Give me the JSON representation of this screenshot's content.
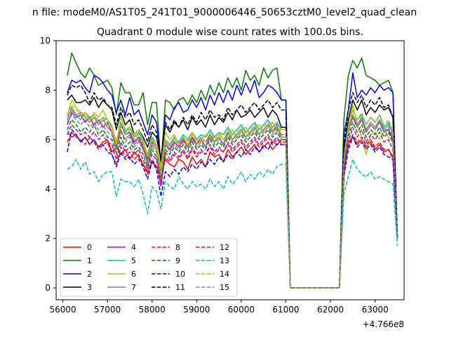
{
  "chart_data": {
    "type": "line",
    "suptitle": "n file: modeM0/AS1T05_241T01_9000006446_50653cztM0_level2_quad_clean",
    "title": "Quadrant 0 module wise count rates with 100.0s bins.",
    "xlabel": "",
    "ylabel": "",
    "x_offset_label": "+4.766e8",
    "xlim": [
      55850,
      63650
    ],
    "ylim": [
      -0.48,
      10.0
    ],
    "xticks": [
      56000,
      57000,
      58000,
      59000,
      60000,
      61000,
      62000,
      63000
    ],
    "xtick_labels": [
      "56000",
      "57000",
      "58000",
      "59000",
      "60000",
      "61000",
      "62000",
      "63000"
    ],
    "yticks": [
      0,
      2,
      4,
      6,
      8,
      10
    ],
    "ytick_labels": [
      "0",
      "2",
      "4",
      "6",
      "8",
      "10"
    ],
    "legend_position": "lower-left",
    "segments": {
      "seg1": {
        "x_start": 56100,
        "x_end": 60900,
        "step": 100
      },
      "drop_x": [
        61000,
        61100
      ],
      "zero_x": [
        61100,
        62200
      ],
      "rise_x": 62300,
      "seg2": {
        "x_start": 62400,
        "x_end": 63400,
        "step": 100
      },
      "end_x": 63500
    },
    "series": [
      {
        "name": "0",
        "color": "#ff0000",
        "dash": "solid",
        "seg1": [
          6.3,
          6.1,
          6.2,
          5.9,
          6.1,
          5.8,
          6.0,
          5.7,
          5.9,
          6.0,
          5.5,
          5.7,
          5.4,
          5.6,
          5.2,
          5.5,
          5.3,
          5.0,
          4.7,
          5.1,
          4.9,
          4.6,
          5.2,
          5.0,
          4.9,
          5.2,
          5.1,
          4.8,
          5.3,
          5.0,
          5.2,
          4.9,
          5.5,
          5.3,
          5.4,
          5.1,
          5.6,
          5.3,
          5.5,
          5.7,
          5.4,
          5.6,
          5.8,
          5.5,
          5.7,
          5.9,
          5.6,
          5.8,
          6.0
        ],
        "drop": [
          6.0,
          0.0
        ],
        "rise": 4.6,
        "seg2": [
          5.9,
          6.1,
          5.8,
          6.0,
          5.7,
          5.9,
          5.6,
          5.8,
          5.5,
          5.6,
          5.3
        ],
        "end": 2.1
      },
      {
        "name": "1",
        "color": "#008000",
        "dash": "solid",
        "seg1": [
          8.6,
          9.5,
          9.1,
          8.7,
          8.5,
          8.9,
          8.6,
          8.2,
          8.3,
          8.4,
          8.1,
          7.0,
          8.3,
          7.9,
          7.9,
          7.4,
          7.4,
          7.9,
          6.6,
          7.5,
          7.5,
          4.9,
          7.6,
          7.5,
          7.2,
          7.6,
          7.7,
          7.4,
          7.8,
          7.5,
          8.0,
          7.6,
          8.2,
          7.8,
          8.3,
          7.9,
          8.5,
          8.1,
          8.5,
          8.0,
          8.8,
          8.4,
          8.6,
          8.2,
          8.9,
          8.5,
          8.8,
          8.9,
          7.6
        ],
        "drop": [
          7.6,
          0.0
        ],
        "rise": 6.8,
        "seg2": [
          8.6,
          9.2,
          8.9,
          9.3,
          8.6,
          8.5,
          8.4,
          8.2,
          8.3,
          8.4,
          7.9
        ],
        "end": 2.0
      },
      {
        "name": "2",
        "color": "#0000ff",
        "dash": "solid",
        "seg1": [
          7.9,
          8.4,
          8.3,
          8.4,
          8.1,
          7.9,
          8.6,
          8.5,
          8.3,
          8.0,
          7.8,
          7.1,
          7.6,
          7.0,
          7.7,
          7.0,
          7.2,
          6.7,
          6.2,
          7.0,
          6.7,
          5.1,
          7.0,
          6.8,
          7.3,
          7.5,
          7.1,
          7.2,
          7.6,
          7.3,
          7.7,
          7.2,
          7.8,
          7.4,
          7.9,
          7.5,
          8.0,
          7.6,
          8.2,
          7.8,
          8.3,
          7.9,
          8.4,
          7.7,
          7.9,
          8.2,
          8.1,
          7.9,
          7.6
        ],
        "drop": [
          7.6,
          0.0
        ],
        "rise": 6.2,
        "seg2": [
          7.2,
          8.7,
          7.7,
          8.0,
          7.8,
          8.1,
          7.9,
          8.2,
          8.0,
          8.1,
          7.9
        ],
        "end": 2.0
      },
      {
        "name": "3",
        "color": "#000000",
        "dash": "solid",
        "seg1": [
          7.6,
          7.8,
          7.5,
          7.5,
          7.6,
          7.4,
          7.7,
          7.3,
          7.6,
          7.4,
          7.2,
          6.4,
          7.1,
          6.6,
          6.8,
          6.2,
          6.4,
          6.1,
          5.7,
          6.3,
          6.1,
          5.2,
          6.6,
          6.3,
          6.7,
          6.5,
          6.8,
          6.4,
          6.9,
          6.6,
          6.8,
          6.5,
          7.0,
          6.6,
          6.9,
          6.7,
          7.1,
          6.8,
          7.2,
          6.9,
          7.0,
          7.2,
          6.9,
          7.1,
          7.3,
          6.9,
          7.2,
          7.0,
          6.5
        ],
        "drop": [
          6.5,
          0.0
        ],
        "rise": 5.6,
        "seg2": [
          6.8,
          7.6,
          7.2,
          7.6,
          7.0,
          7.3,
          7.1,
          7.4,
          7.2,
          7.3,
          6.9
        ],
        "end": 2.0
      },
      {
        "name": "4",
        "color": "#bf00bf",
        "dash": "solid",
        "seg1": [
          6.6,
          7.1,
          6.9,
          7.0,
          6.7,
          6.9,
          6.6,
          6.8,
          6.5,
          6.7,
          6.3,
          5.7,
          6.6,
          6.2,
          6.3,
          5.9,
          6.1,
          5.7,
          5.2,
          5.9,
          5.7,
          4.5,
          5.8,
          5.6,
          5.9,
          5.7,
          6.0,
          5.7,
          6.1,
          5.8,
          6.0,
          5.7,
          6.2,
          5.9,
          6.1,
          5.8,
          6.3,
          6.0,
          6.2,
          6.4,
          6.1,
          6.3,
          6.5,
          6.2,
          6.4,
          6.6,
          6.3,
          6.6,
          6.2
        ],
        "drop": [
          6.2,
          0.0
        ],
        "rise": 5.0,
        "seg2": [
          6.4,
          6.9,
          6.5,
          6.8,
          6.3,
          6.6,
          6.4,
          6.7,
          6.3,
          6.4,
          6.0
        ],
        "end": 2.0
      },
      {
        "name": "5",
        "color": "#00bfbf",
        "dash": "solid",
        "seg1": [
          6.9,
          7.2,
          7.0,
          6.8,
          7.1,
          6.9,
          7.0,
          6.7,
          6.9,
          6.8,
          6.5,
          5.9,
          6.7,
          6.3,
          6.5,
          6.1,
          6.3,
          5.9,
          5.4,
          6.1,
          5.8,
          4.7,
          6.0,
          5.8,
          6.1,
          5.9,
          6.2,
          6.0,
          6.3,
          6.0,
          6.2,
          6.1,
          6.4,
          6.1,
          6.3,
          6.2,
          6.5,
          6.2,
          6.4,
          6.6,
          6.3,
          6.5,
          6.7,
          6.4,
          6.6,
          6.8,
          6.5,
          6.7,
          6.4
        ],
        "drop": [
          6.4,
          0.0
        ],
        "rise": 5.2,
        "seg2": [
          6.6,
          7.2,
          6.8,
          7.0,
          6.6,
          6.9,
          6.7,
          7.0,
          6.5,
          6.7,
          6.2
        ],
        "end": 2.0
      },
      {
        "name": "6",
        "color": "#bfbf00",
        "dash": "solid",
        "seg1": [
          7.0,
          7.6,
          7.3,
          7.1,
          7.0,
          6.8,
          7.1,
          6.9,
          7.2,
          6.8,
          6.6,
          5.8,
          6.9,
          6.4,
          6.5,
          6.2,
          6.4,
          6.0,
          5.3,
          6.0,
          5.8,
          4.9,
          6.3,
          6.0,
          6.2,
          5.8,
          6.1,
          5.9,
          6.3,
          5.9,
          6.0,
          6.2,
          6.1,
          5.9,
          6.3,
          6.0,
          6.2,
          6.4,
          6.1,
          6.3,
          6.5,
          6.2,
          6.4,
          6.6,
          6.3,
          6.5,
          6.7,
          6.4,
          6.4
        ],
        "drop": [
          6.4,
          0.0
        ],
        "rise": 5.3,
        "seg2": [
          6.5,
          7.4,
          6.6,
          6.1,
          5.4,
          6.2,
          6.3,
          6.0,
          6.4,
          6.1,
          5.9
        ],
        "end": 2.0
      },
      {
        "name": "7",
        "color": "#808080",
        "dash": "solid",
        "seg1": [
          6.8,
          7.3,
          7.0,
          7.1,
          6.9,
          6.7,
          6.9,
          6.6,
          6.8,
          6.5,
          6.3,
          5.6,
          6.4,
          6.0,
          6.2,
          5.8,
          6.0,
          5.6,
          5.1,
          5.8,
          5.6,
          4.5,
          5.9,
          5.7,
          6.0,
          5.8,
          6.1,
          5.7,
          6.0,
          5.8,
          6.1,
          5.9,
          6.2,
          5.9,
          6.1,
          5.8,
          6.3,
          6.0,
          6.2,
          6.4,
          6.1,
          6.3,
          6.5,
          6.2,
          6.4,
          6.6,
          6.3,
          6.5,
          6.1
        ],
        "drop": [
          6.1,
          0.0
        ],
        "rise": 5.1,
        "seg2": [
          6.4,
          7.0,
          6.6,
          6.9,
          6.4,
          6.7,
          6.5,
          6.8,
          6.4,
          6.6,
          6.3
        ],
        "end": 2.0
      },
      {
        "name": "8",
        "color": "#ff0000",
        "dash": "dashed",
        "seg1": [
          5.9,
          6.3,
          6.1,
          6.0,
          5.8,
          6.1,
          5.9,
          5.6,
          5.8,
          5.9,
          5.4,
          5.0,
          5.7,
          5.3,
          5.5,
          5.2,
          5.4,
          5.0,
          4.6,
          5.2,
          4.9,
          4.2,
          5.3,
          5.1,
          5.4,
          5.2,
          5.5,
          5.2,
          5.6,
          5.3,
          5.5,
          5.4,
          5.7,
          5.4,
          5.6,
          5.5,
          5.8,
          5.5,
          5.7,
          5.9,
          5.6,
          5.8,
          6.0,
          5.7,
          5.9,
          6.1,
          5.8,
          6.0,
          5.9
        ],
        "drop": [
          5.9,
          0.0
        ],
        "rise": 4.7,
        "seg2": [
          5.7,
          6.2,
          5.9,
          6.1,
          5.8,
          6.0,
          5.7,
          5.9,
          5.6,
          5.6,
          5.2
        ],
        "end": 2.0
      },
      {
        "name": "9",
        "color": "#008000",
        "dash": "dashed",
        "seg1": [
          6.4,
          6.8,
          6.6,
          6.3,
          6.5,
          6.3,
          6.6,
          6.2,
          6.4,
          6.1,
          6.0,
          5.4,
          6.1,
          5.7,
          5.9,
          5.6,
          5.7,
          5.4,
          4.9,
          5.6,
          5.3,
          4.3,
          5.6,
          5.4,
          5.7,
          5.5,
          5.8,
          5.5,
          5.9,
          5.6,
          5.8,
          5.6,
          6.0,
          5.7,
          5.9,
          5.7,
          6.1,
          5.8,
          6.0,
          6.2,
          5.9,
          6.1,
          6.3,
          6.0,
          6.2,
          6.4,
          6.1,
          6.3,
          6.0
        ],
        "drop": [
          6.0,
          0.0
        ],
        "rise": 5.0,
        "seg2": [
          6.1,
          6.7,
          6.3,
          6.6,
          6.1,
          6.4,
          6.2,
          6.5,
          6.1,
          6.3,
          5.9
        ],
        "end": 2.0
      },
      {
        "name": "10",
        "color": "#0000ff",
        "dash": "dashed",
        "seg1": [
          5.5,
          6.4,
          6.2,
          5.9,
          6.1,
          5.8,
          6.0,
          5.7,
          5.8,
          5.5,
          5.4,
          4.9,
          5.5,
          5.2,
          5.3,
          5.0,
          5.2,
          4.9,
          4.4,
          5.1,
          4.8,
          3.7,
          4.7,
          4.5,
          4.8,
          4.6,
          4.9,
          4.7,
          5.0,
          4.8,
          5.1,
          4.9,
          5.2,
          5.0,
          5.3,
          5.1,
          5.4,
          5.2,
          5.5,
          5.3,
          5.6,
          5.4,
          5.7,
          5.5,
          5.8,
          5.6,
          5.9,
          5.8,
          5.8
        ],
        "drop": [
          5.8,
          0.0
        ],
        "rise": 4.5,
        "seg2": [
          5.6,
          6.1,
          5.7,
          5.9,
          5.6,
          5.8,
          5.5,
          5.7,
          5.4,
          5.3,
          5.2
        ],
        "end": 2.0
      },
      {
        "name": "11",
        "color": "#000000",
        "dash": "dashed",
        "seg1": [
          7.8,
          8.2,
          8.1,
          8.2,
          7.9,
          7.5,
          7.9,
          7.6,
          7.7,
          7.4,
          7.3,
          6.6,
          7.3,
          6.9,
          7.1,
          6.6,
          6.8,
          6.4,
          5.9,
          6.6,
          6.3,
          5.2,
          6.7,
          6.4,
          6.8,
          6.5,
          6.9,
          6.6,
          7.0,
          6.7,
          7.1,
          6.8,
          7.2,
          6.9,
          7.0,
          6.8,
          7.3,
          7.0,
          7.2,
          7.4,
          7.1,
          7.3,
          7.5,
          7.2,
          7.4,
          7.6,
          7.3,
          7.5,
          7.2
        ],
        "drop": [
          7.2,
          0.0
        ],
        "rise": 5.8,
        "seg2": [
          7.2,
          7.9,
          7.5,
          7.8,
          7.3,
          7.6,
          7.4,
          7.7,
          7.3,
          7.4,
          6.9
        ],
        "end": 2.0
      },
      {
        "name": "12",
        "color": "#bf00bf",
        "dash": "dashed",
        "seg1": [
          6.2,
          6.6,
          6.4,
          6.2,
          6.3,
          6.1,
          6.3,
          6.0,
          6.2,
          5.9,
          5.8,
          5.2,
          5.9,
          5.5,
          5.7,
          5.4,
          5.6,
          5.2,
          4.8,
          5.4,
          5.2,
          4.1,
          5.5,
          5.2,
          5.5,
          5.3,
          5.6,
          5.3,
          5.7,
          5.4,
          5.6,
          5.4,
          5.8,
          5.5,
          5.7,
          5.5,
          5.9,
          5.6,
          5.8,
          6.0,
          5.7,
          5.9,
          6.1,
          5.8,
          6.0,
          6.2,
          5.9,
          6.1,
          5.8
        ],
        "drop": [
          5.8,
          0.0
        ],
        "rise": 4.8,
        "seg2": [
          5.9,
          6.5,
          6.1,
          6.4,
          5.9,
          6.2,
          6.0,
          6.3,
          5.9,
          6.0,
          5.6
        ],
        "end": 2.0
      },
      {
        "name": "13",
        "color": "#00bfbf",
        "dash": "dashed",
        "seg1": [
          4.8,
          4.9,
          5.2,
          4.8,
          5.1,
          4.6,
          4.7,
          4.3,
          4.6,
          4.7,
          4.7,
          3.7,
          4.4,
          4.3,
          4.3,
          4.1,
          4.4,
          3.8,
          3.0,
          4.1,
          3.9,
          3.2,
          4.3,
          4.1,
          4.0,
          4.5,
          4.2,
          4.0,
          4.3,
          4.1,
          4.2,
          4.0,
          4.4,
          4.1,
          4.3,
          4.0,
          4.5,
          4.2,
          4.4,
          4.7,
          4.3,
          4.6,
          4.4,
          4.7,
          4.5,
          4.8,
          4.6,
          4.9,
          5.0
        ],
        "drop": [
          5.0,
          0.0
        ],
        "rise": 3.8,
        "seg2": [
          4.5,
          5.2,
          4.8,
          4.6,
          4.5,
          4.7,
          4.4,
          4.5,
          4.4,
          4.3,
          4.2
        ],
        "end": 1.7
      },
      {
        "name": "14",
        "color": "#bfbf00",
        "dash": "dashed",
        "seg1": [
          7.0,
          7.4,
          7.2,
          7.0,
          7.1,
          6.8,
          7.0,
          6.7,
          6.9,
          6.6,
          6.5,
          5.9,
          6.6,
          6.2,
          6.4,
          6.0,
          6.2,
          5.8,
          5.3,
          6.0,
          5.7,
          4.6,
          6.0,
          5.7,
          6.0,
          5.8,
          6.1,
          5.8,
          6.2,
          5.9,
          6.1,
          5.9,
          6.3,
          6.0,
          6.2,
          6.0,
          6.4,
          6.1,
          6.3,
          6.5,
          6.2,
          6.4,
          6.6,
          6.3,
          6.5,
          6.7,
          6.4,
          6.6,
          6.2
        ],
        "drop": [
          6.2,
          0.0
        ],
        "rise": 5.2,
        "seg2": [
          6.5,
          7.2,
          6.8,
          7.1,
          6.6,
          6.9,
          6.7,
          7.0,
          6.6,
          6.8,
          6.4
        ],
        "end": 2.0
      },
      {
        "name": "15",
        "color": "#808080",
        "dash": "dashed",
        "seg1": [
          6.7,
          7.0,
          6.8,
          6.6,
          6.8,
          6.5,
          6.7,
          6.4,
          6.6,
          6.3,
          6.2,
          5.6,
          6.3,
          5.9,
          6.1,
          5.7,
          5.9,
          5.6,
          5.0,
          5.7,
          5.5,
          4.4,
          5.8,
          5.5,
          5.8,
          5.6,
          5.9,
          5.6,
          6.0,
          5.7,
          5.9,
          5.7,
          6.1,
          5.8,
          6.0,
          5.8,
          6.2,
          5.9,
          6.1,
          6.3,
          6.0,
          6.2,
          6.4,
          6.1,
          6.3,
          6.5,
          6.2,
          6.4,
          6.0
        ],
        "drop": [
          6.0,
          0.0
        ],
        "rise": 5.0,
        "seg2": [
          6.3,
          6.9,
          6.5,
          6.8,
          6.3,
          6.6,
          6.4,
          6.7,
          6.3,
          6.5,
          6.1
        ],
        "end": 2.0
      }
    ]
  }
}
